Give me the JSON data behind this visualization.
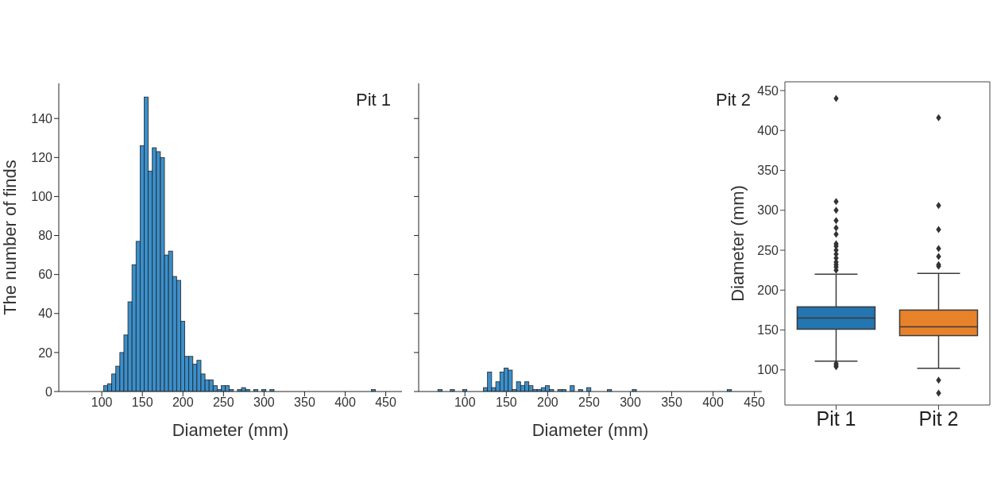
{
  "chart_data": [
    {
      "type": "histogram",
      "xlabel": "Diameter (mm)",
      "ylabel": "The number of finds",
      "annotations": [
        "Pit 1"
      ],
      "color": "#3a8fcb",
      "bins": [
        102.5,
        107.5,
        112.5,
        117.5,
        122.5,
        127.5,
        132.5,
        137.5,
        142.5,
        147.5,
        152.5,
        157.5,
        162.5,
        167.5,
        172.5,
        177.5,
        182.5,
        187.5,
        192.5,
        197.5,
        202.5,
        207.5,
        212.5,
        217.5,
        222.5,
        227.5,
        232.5,
        237.5,
        242.5,
        247.5,
        252.5,
        257.5,
        262.5,
        267.5,
        272.5,
        277.5,
        282.5,
        287.5,
        292.5,
        297.5,
        302.5,
        307.5,
        312.5,
        317.5,
        322.5,
        327.5,
        332.5,
        337.5,
        342.5,
        347.5,
        352.5,
        357.5,
        362.5,
        367.5,
        372.5,
        377.5,
        382.5,
        387.5,
        392.5,
        397.5,
        402.5,
        407.5,
        412.5,
        417.5,
        422.5,
        427.5,
        432.5,
        437.5
      ],
      "values": [
        3,
        4,
        9,
        13,
        20,
        29,
        46,
        65,
        77,
        126,
        151,
        113,
        125,
        123,
        120,
        70,
        72,
        59,
        57,
        36,
        18,
        18,
        14,
        16,
        9,
        6,
        6,
        3,
        1,
        3,
        3,
        1,
        0,
        1,
        2,
        1,
        0,
        1,
        0,
        1,
        0,
        1,
        0,
        0,
        0,
        0,
        0,
        0,
        0,
        0,
        0,
        0,
        0,
        0,
        0,
        0,
        0,
        0,
        0,
        0,
        0,
        0,
        0,
        0,
        0,
        0,
        1
      ],
      "xlim": [
        47,
        470
      ],
      "xticks": [
        100,
        150,
        200,
        250,
        300,
        350,
        400,
        450
      ],
      "ylim": [
        0,
        158
      ],
      "yticks": [
        0,
        20,
        40,
        60,
        80,
        100,
        120,
        140
      ]
    },
    {
      "type": "histogram",
      "xlabel": "Diameter (mm)",
      "annotations": [
        "Pit 2"
      ],
      "color": "#3a8fcb",
      "tick_labels": "x",
      "bins": [
        67.5,
        72.5,
        77.5,
        82.5,
        87.5,
        92.5,
        97.5,
        102.5,
        107.5,
        112.5,
        117.5,
        122.5,
        127.5,
        132.5,
        137.5,
        142.5,
        147.5,
        152.5,
        157.5,
        162.5,
        167.5,
        172.5,
        177.5,
        182.5,
        187.5,
        192.5,
        197.5,
        202.5,
        207.5,
        212.5,
        217.5,
        222.5,
        227.5,
        232.5,
        237.5,
        242.5,
        247.5,
        252.5,
        257.5,
        262.5,
        267.5,
        272.5,
        277.5,
        282.5,
        287.5,
        292.5,
        297.5,
        302.5,
        307.5,
        312.5,
        317.5,
        322.5,
        327.5,
        332.5,
        337.5,
        342.5,
        347.5,
        352.5,
        357.5,
        362.5,
        367.5,
        372.5,
        377.5,
        382.5,
        387.5,
        392.5,
        397.5,
        402.5,
        407.5,
        412.5,
        417.5,
        422.5
      ],
      "values": [
        1,
        0,
        0,
        1,
        0,
        0,
        1,
        0,
        0,
        0,
        0,
        2,
        10,
        2,
        5,
        10,
        12,
        11,
        1,
        5,
        3,
        5,
        3,
        1,
        1,
        2,
        3,
        1,
        0,
        1,
        1,
        0,
        3,
        0,
        1,
        0,
        2,
        0,
        0,
        0,
        0,
        1,
        0,
        0,
        0,
        0,
        0,
        1,
        0,
        0,
        0,
        0,
        0,
        0,
        0,
        0,
        0,
        0,
        0,
        0,
        0,
        0,
        0,
        0,
        0,
        0,
        0,
        0,
        0,
        0,
        1
      ],
      "xlim": [
        44,
        459
      ],
      "xticks": [
        100,
        150,
        200,
        250,
        300,
        350,
        400,
        450
      ],
      "ylim": [
        0,
        158
      ],
      "yticks": [
        0,
        20,
        40,
        60,
        80,
        100,
        120,
        140
      ]
    },
    {
      "type": "box",
      "categories": [
        "Pit 1",
        "Pit 2"
      ],
      "ylabel": "Diameter (mm)",
      "colors": [
        "#2475b0",
        "#e8822a"
      ],
      "marker": "diamond",
      "boxes": [
        {
          "low": 111,
          "q1": 151,
          "median": 165,
          "q3": 179,
          "high": 220,
          "outliers": [
            104,
            106,
            108,
            225,
            229,
            232,
            235,
            240,
            245,
            250,
            255,
            258,
            270,
            278,
            287,
            300,
            311,
            440
          ]
        },
        {
          "low": 102,
          "q1": 143,
          "median": 154,
          "q3": 175,
          "high": 221,
          "outliers": [
            71,
            87,
            230,
            232,
            242,
            252,
            276,
            306,
            416
          ]
        }
      ],
      "ylim": [
        56,
        461
      ],
      "yticks": [
        100,
        150,
        200,
        250,
        300,
        350,
        400,
        450
      ]
    }
  ]
}
